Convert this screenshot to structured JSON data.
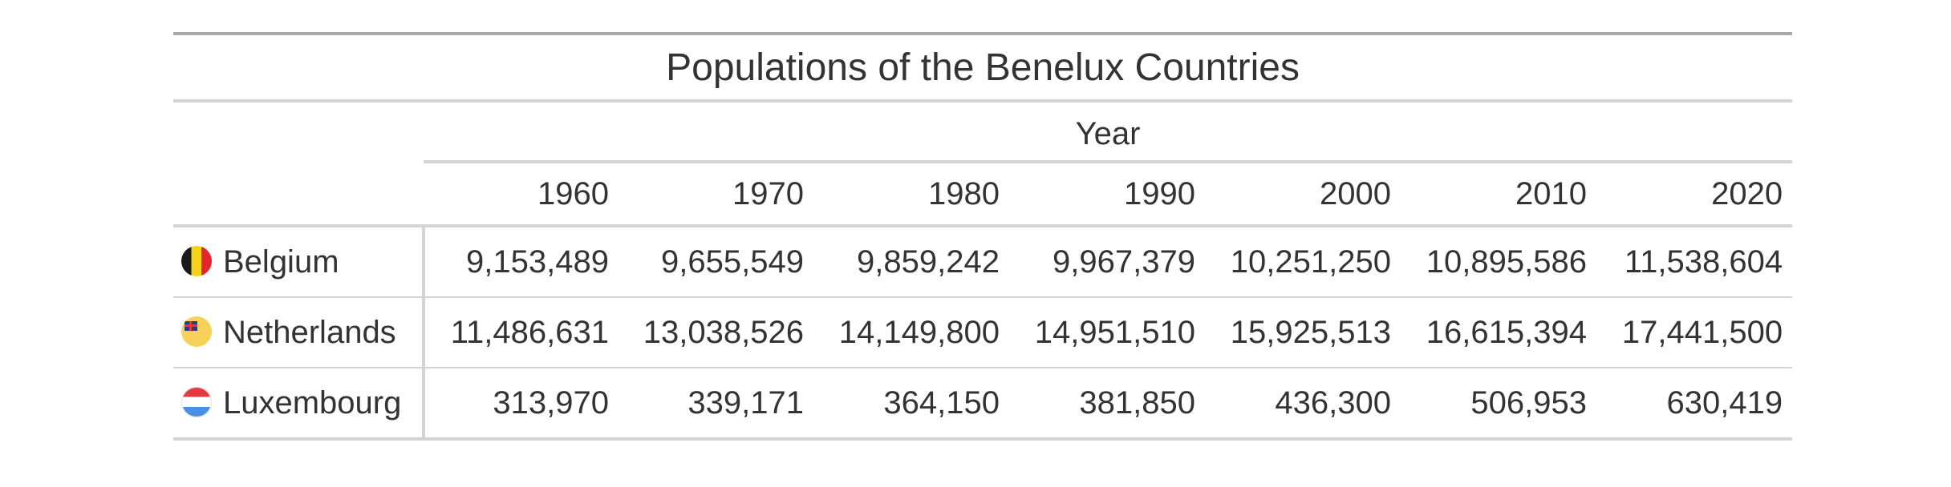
{
  "table": {
    "title": "Populations of the Benelux Countries",
    "spanner": "Year",
    "columns": [
      "1960",
      "1970",
      "1980",
      "1990",
      "2000",
      "2010",
      "2020"
    ],
    "rows": [
      {
        "name": "Belgium",
        "flag_icon": "belgium-flag-icon",
        "values": [
          "9,153,489",
          "9,655,549",
          "9,859,242",
          "9,967,379",
          "10,251,250",
          "10,895,586",
          "11,538,604"
        ]
      },
      {
        "name": "Netherlands",
        "flag_icon": "netherlands-flag-icon",
        "values": [
          "11,486,631",
          "13,038,526",
          "14,149,800",
          "14,951,510",
          "15,925,513",
          "16,615,394",
          "17,441,500"
        ]
      },
      {
        "name": "Luxembourg",
        "flag_icon": "luxembourg-flag-icon",
        "values": [
          "313,970",
          "339,171",
          "364,150",
          "381,850",
          "436,300",
          "506,953",
          "630,419"
        ]
      }
    ]
  },
  "colors": {
    "text": "#333333",
    "rule_strong": "#a8a8a8",
    "rule_light": "#d3d3d3"
  }
}
